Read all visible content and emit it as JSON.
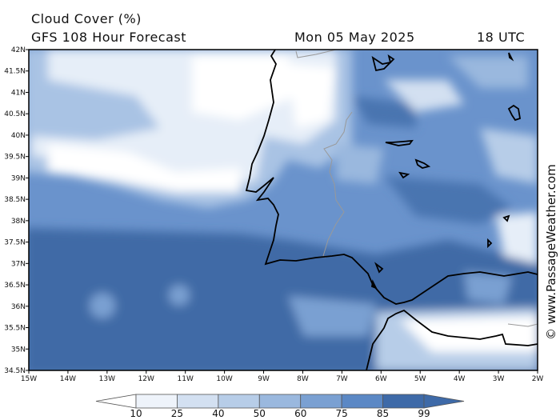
{
  "header": {
    "title": "Cloud Cover (%)",
    "subtitle": "GFS 108 Hour Forecast",
    "date": "Mon 05 May 2025",
    "time": "18 UTC"
  },
  "credit": "© www.PassageWeather.com",
  "axes": {
    "lat_labels": [
      "42N",
      "41.5N",
      "41N",
      "40.5N",
      "40N",
      "39.5N",
      "39N",
      "38.5N",
      "38N",
      "37.5N",
      "37N",
      "36.5N",
      "36N",
      "35.5N",
      "35N",
      "34.5N"
    ],
    "lon_labels": [
      "15W",
      "14W",
      "13W",
      "12W",
      "11W",
      "10W",
      "9W",
      "8W",
      "7W",
      "6W",
      "5W",
      "4W",
      "3W",
      "2W"
    ]
  },
  "legend": {
    "labels": [
      "10",
      "25",
      "40",
      "50",
      "60",
      "75",
      "85",
      "99"
    ],
    "colors": [
      "#ffffff",
      "#eef3fa",
      "#d3e0f1",
      "#b7cde8",
      "#9ab8de",
      "#7aa0d2",
      "#5b88c5",
      "#3e6aa8"
    ]
  },
  "colors": {
    "ocean_dark": "#3f6aa6",
    "mid_blue": "#6a93cc",
    "light_blue": "#a9c3e4",
    "pale": "#e6eef8",
    "coast": "#000000",
    "border": "#999999"
  }
}
